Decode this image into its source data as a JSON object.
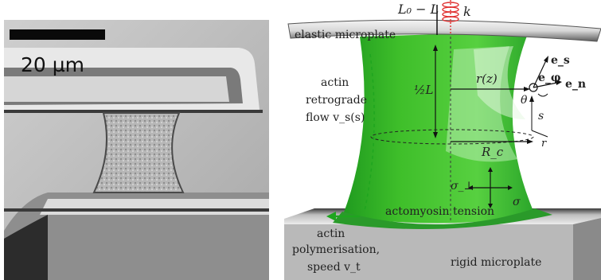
{
  "figure": {
    "left_panel": {
      "scale_bar_label": "20 µm"
    },
    "right_panel": {
      "top_label": "L₀ − L",
      "spring_label": "k",
      "plate_top_label": "elastic microplate",
      "flow_label_lines": [
        "actin",
        "retrograde",
        "flow v_s(s)"
      ],
      "half_L_label": "½L",
      "rz_label": "r(z)",
      "e_s_label": "e_s",
      "e_phi_label": "e_φ",
      "e_n_label": "e_n",
      "theta_label": "θ",
      "s_label": "s",
      "r_axis_label": "r",
      "Rc_label": "R_c",
      "sigma_perp_label": "σ_⊥",
      "sigma_label": "σ",
      "tension_label": "actomyosin tension",
      "poly_label_lines": [
        "actin",
        "polymerisation,",
        "speed v_t"
      ],
      "plate_bottom_label": "rigid microplate"
    },
    "colors": {
      "cell_green": "#3fbf2a",
      "cell_light": "#b8ecb0",
      "plate_gray": "#9a9a9a",
      "spring_red": "#e03030",
      "arrow_green": "#1fa51f"
    }
  }
}
